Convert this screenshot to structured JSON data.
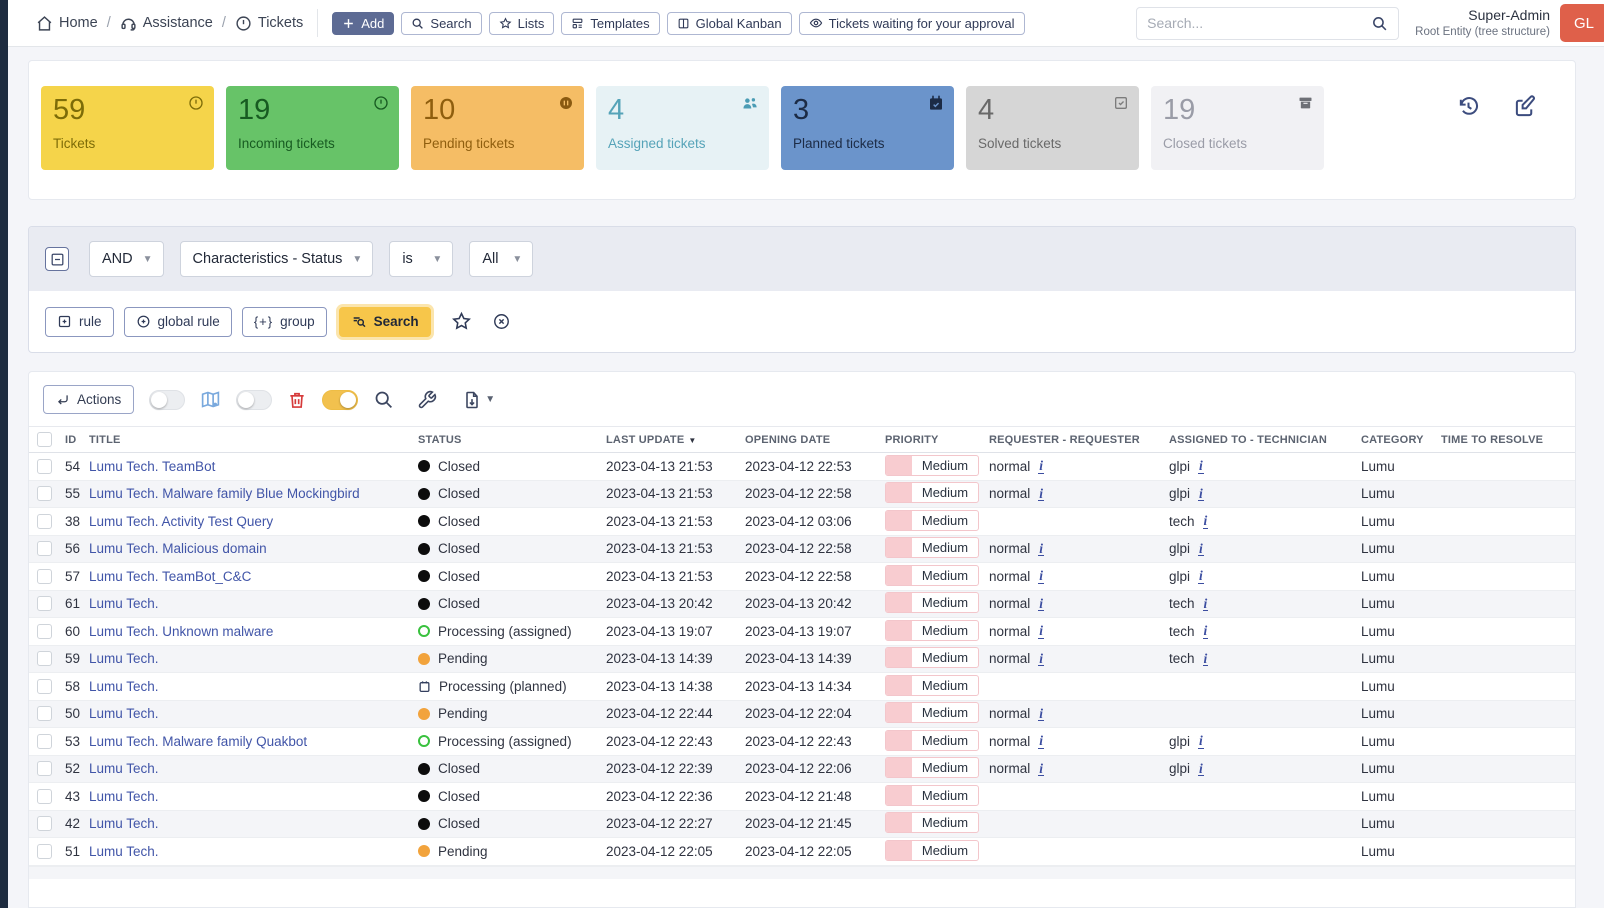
{
  "header": {
    "breadcrumb": [
      {
        "icon": "home-icon",
        "label": "Home"
      },
      {
        "icon": "headset-icon",
        "label": "Assistance"
      },
      {
        "icon": "exclamation-circle-icon",
        "label": "Tickets"
      }
    ],
    "actions": [
      {
        "icon": "plus-icon",
        "label": "Add"
      },
      {
        "icon": "search-icon",
        "label": "Search"
      },
      {
        "icon": "star-icon",
        "label": "Lists"
      },
      {
        "icon": "template-icon",
        "label": "Templates"
      },
      {
        "icon": "kanban-icon",
        "label": "Global Kanban"
      },
      {
        "icon": "eye-check-icon",
        "label": "Tickets waiting for your approval"
      }
    ],
    "search_placeholder": "Search...",
    "user": {
      "name": "Super-Admin",
      "entity": "Root Entity (tree structure)",
      "avatar": "GL"
    }
  },
  "summary_cards": [
    {
      "value": "59",
      "label": "Tickets",
      "icon": "alert-circle-icon",
      "bg": "#f5d44a",
      "fg": "#7d6c08"
    },
    {
      "value": "19",
      "label": "Incoming tickets",
      "icon": "alert-circle-icon",
      "bg": "#67c368",
      "fg": "#175b21"
    },
    {
      "value": "10",
      "label": "Pending tickets",
      "icon": "pause-circle-icon",
      "bg": "#f5bd65",
      "fg": "#8f5e0e"
    },
    {
      "value": "4",
      "label": "Assigned tickets",
      "icon": "users-icon",
      "bg": "#e7f2f5",
      "fg": "#55a3b8"
    },
    {
      "value": "3",
      "label": "Planned tickets",
      "icon": "calendar-check-icon",
      "bg": "#6b94cb",
      "fg": "#1c2b45"
    },
    {
      "value": "4",
      "label": "Solved tickets",
      "icon": "check-square-icon",
      "bg": "#d6d6d6",
      "fg": "#696969"
    },
    {
      "value": "19",
      "label": "Closed tickets",
      "icon": "archive-icon",
      "bg": "#f1f1f4",
      "fg": "#9a9ca7"
    }
  ],
  "panel_icons": [
    "history-icon",
    "edit-icon"
  ],
  "filter": {
    "logic": "AND",
    "field": "Characteristics - Status",
    "operator": "is",
    "value": "All",
    "buttons": {
      "rule": "rule",
      "global_rule": "global rule",
      "group": "group",
      "search": "Search"
    }
  },
  "toolbar": {
    "actions_label": "Actions"
  },
  "table": {
    "columns": [
      {
        "key": "id",
        "label": "ID"
      },
      {
        "key": "title",
        "label": "TITLE"
      },
      {
        "key": "status",
        "label": "STATUS"
      },
      {
        "key": "last_update",
        "label": "LAST UPDATE",
        "sort": "desc"
      },
      {
        "key": "opening_date",
        "label": "OPENING DATE"
      },
      {
        "key": "priority",
        "label": "PRIORITY"
      },
      {
        "key": "requester",
        "label": "REQUESTER - REQUESTER"
      },
      {
        "key": "assigned",
        "label": "ASSIGNED TO - TECHNICIAN"
      },
      {
        "key": "category",
        "label": "CATEGORY"
      },
      {
        "key": "ttr",
        "label": "TIME TO RESOLVE"
      }
    ],
    "rows": [
      {
        "id": "54",
        "title": "Lumu Tech. TeamBot",
        "status": "Closed",
        "status_type": "closed",
        "last_update": "2023-04-13 21:53",
        "opening_date": "2023-04-12 22:53",
        "priority": "Medium",
        "requester": "normal",
        "assigned": "glpi",
        "category": "Lumu",
        "ttr": ""
      },
      {
        "id": "55",
        "title": "Lumu Tech. Malware family Blue Mockingbird",
        "status": "Closed",
        "status_type": "closed",
        "last_update": "2023-04-13 21:53",
        "opening_date": "2023-04-12 22:58",
        "priority": "Medium",
        "requester": "normal",
        "assigned": "glpi",
        "category": "Lumu",
        "ttr": ""
      },
      {
        "id": "38",
        "title": "Lumu Tech. Activity Test Query",
        "status": "Closed",
        "status_type": "closed",
        "last_update": "2023-04-13 21:53",
        "opening_date": "2023-04-12 03:06",
        "priority": "Medium",
        "requester": "",
        "assigned": "tech",
        "category": "Lumu",
        "ttr": ""
      },
      {
        "id": "56",
        "title": "Lumu Tech. Malicious domain",
        "status": "Closed",
        "status_type": "closed",
        "last_update": "2023-04-13 21:53",
        "opening_date": "2023-04-12 22:58",
        "priority": "Medium",
        "requester": "normal",
        "assigned": "glpi",
        "category": "Lumu",
        "ttr": ""
      },
      {
        "id": "57",
        "title": "Lumu Tech. TeamBot_C&C",
        "status": "Closed",
        "status_type": "closed",
        "last_update": "2023-04-13 21:53",
        "opening_date": "2023-04-12 22:58",
        "priority": "Medium",
        "requester": "normal",
        "assigned": "glpi",
        "category": "Lumu",
        "ttr": ""
      },
      {
        "id": "61",
        "title": "Lumu Tech.",
        "status": "Closed",
        "status_type": "closed",
        "last_update": "2023-04-13 20:42",
        "opening_date": "2023-04-13 20:42",
        "priority": "Medium",
        "requester": "normal",
        "assigned": "tech",
        "category": "Lumu",
        "ttr": ""
      },
      {
        "id": "60",
        "title": "Lumu Tech. Unknown malware",
        "status": "Processing (assigned)",
        "status_type": "assigned",
        "last_update": "2023-04-13 19:07",
        "opening_date": "2023-04-13 19:07",
        "priority": "Medium",
        "requester": "normal",
        "assigned": "tech",
        "category": "Lumu",
        "ttr": ""
      },
      {
        "id": "59",
        "title": "Lumu Tech.",
        "status": "Pending",
        "status_type": "pending",
        "last_update": "2023-04-13 14:39",
        "opening_date": "2023-04-13 14:39",
        "priority": "Medium",
        "requester": "normal",
        "assigned": "tech",
        "category": "Lumu",
        "ttr": ""
      },
      {
        "id": "58",
        "title": "Lumu Tech.",
        "status": "Processing (planned)",
        "status_type": "planned",
        "last_update": "2023-04-13 14:38",
        "opening_date": "2023-04-13 14:34",
        "priority": "Medium",
        "requester": "",
        "assigned": "",
        "category": "Lumu",
        "ttr": ""
      },
      {
        "id": "50",
        "title": "Lumu Tech.",
        "status": "Pending",
        "status_type": "pending",
        "last_update": "2023-04-12 22:44",
        "opening_date": "2023-04-12 22:04",
        "priority": "Medium",
        "requester": "normal",
        "assigned": "",
        "category": "Lumu",
        "ttr": ""
      },
      {
        "id": "53",
        "title": "Lumu Tech. Malware family Quakbot",
        "status": "Processing (assigned)",
        "status_type": "assigned",
        "last_update": "2023-04-12 22:43",
        "opening_date": "2023-04-12 22:43",
        "priority": "Medium",
        "requester": "normal",
        "assigned": "glpi",
        "category": "Lumu",
        "ttr": ""
      },
      {
        "id": "52",
        "title": "Lumu Tech.",
        "status": "Closed",
        "status_type": "closed",
        "last_update": "2023-04-12 22:39",
        "opening_date": "2023-04-12 22:06",
        "priority": "Medium",
        "requester": "normal",
        "assigned": "glpi",
        "category": "Lumu",
        "ttr": ""
      },
      {
        "id": "43",
        "title": "Lumu Tech.",
        "status": "Closed",
        "status_type": "closed",
        "last_update": "2023-04-12 22:36",
        "opening_date": "2023-04-12 21:48",
        "priority": "Medium",
        "requester": "",
        "assigned": "",
        "category": "Lumu",
        "ttr": ""
      },
      {
        "id": "42",
        "title": "Lumu Tech.",
        "status": "Closed",
        "status_type": "closed",
        "last_update": "2023-04-12 22:27",
        "opening_date": "2023-04-12 21:45",
        "priority": "Medium",
        "requester": "",
        "assigned": "",
        "category": "Lumu",
        "ttr": ""
      },
      {
        "id": "51",
        "title": "Lumu Tech.",
        "status": "Pending",
        "status_type": "pending",
        "last_update": "2023-04-12 22:05",
        "opening_date": "2023-04-12 22:05",
        "priority": "Medium",
        "requester": "",
        "assigned": "",
        "category": "Lumu",
        "ttr": ""
      }
    ]
  }
}
